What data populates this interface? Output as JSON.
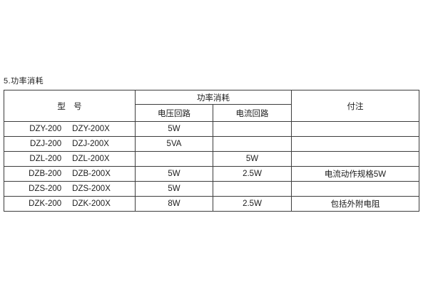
{
  "page": {
    "heading": "5.功率消耗"
  },
  "colors": {
    "background": "#ffffff",
    "border": "#3d3d3d",
    "text": "#1c1c1c"
  },
  "table": {
    "headers": {
      "model": "型 号",
      "power_group": "功率消耗",
      "voltage_circuit": "电压回路",
      "current_circuit": "电流回路",
      "notes": "付注"
    },
    "rows": [
      {
        "models": [
          "DZY-200",
          "DZY-200X"
        ],
        "voltage": "5W",
        "current": "",
        "note": ""
      },
      {
        "models": [
          "DZJ-200",
          "DZJ-200X"
        ],
        "voltage": "5VA",
        "current": "",
        "note": ""
      },
      {
        "models": [
          "DZL-200",
          "DZL-200X"
        ],
        "voltage": "",
        "current": "5W",
        "note": ""
      },
      {
        "models": [
          "DZB-200",
          "DZB-200X"
        ],
        "voltage": "5W",
        "current": "2.5W",
        "note": "电流动作规格5W"
      },
      {
        "models": [
          "DZS-200",
          "DZS-200X"
        ],
        "voltage": "5W",
        "current": "",
        "note": ""
      },
      {
        "models": [
          "DZK-200",
          "DZK-200X"
        ],
        "voltage": "8W",
        "current": "2.5W",
        "note": "包括外附电阻"
      }
    ]
  }
}
